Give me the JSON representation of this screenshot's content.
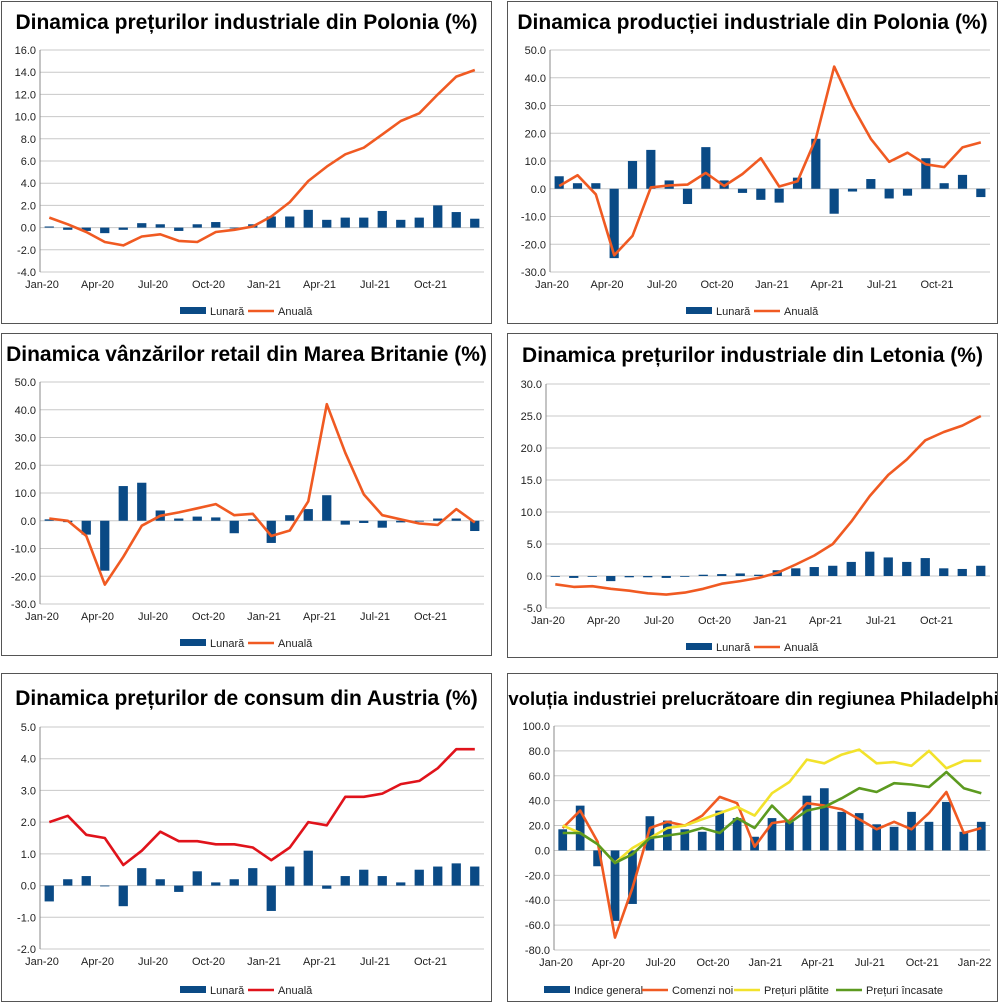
{
  "colors": {
    "bar": "#0a4a85",
    "orange": "#f05a22",
    "red": "#e0131b",
    "yellow": "#f2e22b",
    "green": "#5c9a20"
  },
  "chart_data": [
    {
      "type": "bar+line",
      "title": "Dinamica prețurilor industriale din Polonia (%)",
      "ylim": [
        -4,
        16
      ],
      "ystep": 2,
      "ydec": 1,
      "x_ticks": [
        "Jan-20",
        "Apr-20",
        "Jul-20",
        "Oct-20",
        "Jan-21",
        "Apr-21",
        "Jul-21",
        "Oct-21"
      ],
      "months": [
        "Jan-20",
        "Feb-20",
        "Mar-20",
        "Apr-20",
        "May-20",
        "Jun-20",
        "Jul-20",
        "Aug-20",
        "Sep-20",
        "Oct-20",
        "Nov-20",
        "Dec-20",
        "Jan-21",
        "Feb-21",
        "Mar-21",
        "Apr-21",
        "May-21",
        "Jun-21",
        "Jul-21",
        "Aug-21",
        "Sep-21",
        "Oct-21",
        "Nov-21",
        "Dec-21"
      ],
      "series": [
        {
          "name": "Lunară",
          "kind": "bar",
          "color": "bar",
          "values": [
            0.1,
            -0.2,
            -0.3,
            -0.5,
            -0.2,
            0.4,
            0.3,
            -0.3,
            0.3,
            0.5,
            0.0,
            0.3,
            1.0,
            1.0,
            1.6,
            0.7,
            0.9,
            0.9,
            1.5,
            0.7,
            0.9,
            2.0,
            1.4,
            0.8
          ]
        },
        {
          "name": "Anuală",
          "kind": "line",
          "color": "orange",
          "values": [
            0.9,
            0.3,
            -0.4,
            -1.3,
            -1.6,
            -0.8,
            -0.6,
            -1.2,
            -1.3,
            -0.4,
            -0.2,
            0.1,
            1.0,
            2.3,
            4.2,
            5.5,
            6.6,
            7.2,
            8.4,
            9.6,
            10.3,
            12.0,
            13.6,
            14.2
          ]
        }
      ],
      "legend": [
        "Lunară",
        "Anuală"
      ]
    },
    {
      "type": "bar+line",
      "title": "Dinamica producției industriale din Polonia (%)",
      "ylim": [
        -30,
        50
      ],
      "ystep": 10,
      "ydec": 1,
      "x_ticks": [
        "Jan-20",
        "Apr-20",
        "Jul-20",
        "Oct-20",
        "Jan-21",
        "Apr-21",
        "Jul-21",
        "Oct-21"
      ],
      "months": [
        "Jan-20",
        "Feb-20",
        "Mar-20",
        "Apr-20",
        "May-20",
        "Jun-20",
        "Jul-20",
        "Aug-20",
        "Sep-20",
        "Oct-20",
        "Nov-20",
        "Dec-20",
        "Jan-21",
        "Feb-21",
        "Mar-21",
        "Apr-21",
        "May-21",
        "Jun-21",
        "Jul-21",
        "Aug-21",
        "Sep-21",
        "Oct-21",
        "Nov-21",
        "Dec-21"
      ],
      "series": [
        {
          "name": "Lunară",
          "kind": "bar",
          "color": "bar",
          "values": [
            4.5,
            2.0,
            2.0,
            -25.0,
            10.0,
            14.0,
            3.0,
            -5.5,
            15.0,
            3.0,
            -1.5,
            -4.0,
            -5.0,
            4.0,
            18.0,
            -9.0,
            -1.0,
            3.5,
            -3.5,
            -2.5,
            11.0,
            2.0,
            5.0,
            -3.0
          ]
        },
        {
          "name": "Anuală",
          "kind": "line",
          "color": "orange",
          "values": [
            1.0,
            4.9,
            -2.0,
            -24.0,
            -17.0,
            0.5,
            1.2,
            1.5,
            5.7,
            1.0,
            5.3,
            11.0,
            0.8,
            2.7,
            18.0,
            44.0,
            29.8,
            18.0,
            9.7,
            13.0,
            8.8,
            7.8,
            14.9,
            16.7
          ]
        }
      ],
      "legend": [
        "Lunară",
        "Anuală"
      ]
    },
    {
      "type": "bar+line",
      "title": "Dinamica vânzărilor retail din Marea Britanie (%)",
      "ylim": [
        -30,
        50
      ],
      "ystep": 10,
      "ydec": 1,
      "x_ticks": [
        "Jan-20",
        "Apr-20",
        "Jul-20",
        "Oct-20",
        "Jan-21",
        "Apr-21",
        "Jul-21",
        "Oct-21"
      ],
      "months": [
        "Jan-20",
        "Feb-20",
        "Mar-20",
        "Apr-20",
        "May-20",
        "Jun-20",
        "Jul-20",
        "Aug-20",
        "Sep-20",
        "Oct-20",
        "Nov-20",
        "Dec-20",
        "Jan-21",
        "Feb-21",
        "Mar-21",
        "Apr-21",
        "May-21",
        "Jun-21",
        "Jul-21",
        "Aug-21",
        "Sep-21",
        "Oct-21",
        "Nov-21",
        "Dec-21"
      ],
      "series": [
        {
          "name": "Lunară",
          "kind": "bar",
          "color": "bar",
          "values": [
            0.5,
            -0.5,
            -5.0,
            -18.0,
            12.5,
            13.7,
            3.7,
            0.8,
            1.5,
            1.2,
            -4.5,
            0.5,
            -8.0,
            2.0,
            4.2,
            9.2,
            -1.4,
            -0.8,
            -2.5,
            -0.6,
            -0.3,
            0.8,
            0.8,
            -3.7
          ]
        },
        {
          "name": "Anuală",
          "kind": "line",
          "color": "orange",
          "values": [
            0.8,
            0.0,
            -5.5,
            -23.0,
            -13.0,
            -1.8,
            1.8,
            3.0,
            4.5,
            6.0,
            2.0,
            2.5,
            -5.5,
            -3.5,
            7.0,
            42.0,
            24.5,
            9.5,
            2.0,
            0.5,
            -1.0,
            -1.5,
            4.2,
            -0.6
          ]
        }
      ],
      "legend": [
        "Lunară",
        "Anuală"
      ]
    },
    {
      "type": "bar+line",
      "title": "Dinamica prețurilor industriale din Letonia (%)",
      "ylim": [
        -5,
        30
      ],
      "ystep": 5,
      "ydec": 1,
      "x_ticks": [
        "Jan-20",
        "Apr-20",
        "Jul-20",
        "Oct-20",
        "Jan-21",
        "Apr-21",
        "Jul-21",
        "Oct-21"
      ],
      "months": [
        "Jan-20",
        "Feb-20",
        "Mar-20",
        "Apr-20",
        "May-20",
        "Jun-20",
        "Jul-20",
        "Aug-20",
        "Sep-20",
        "Oct-20",
        "Nov-20",
        "Dec-20",
        "Jan-21",
        "Feb-21",
        "Mar-21",
        "Apr-21",
        "May-21",
        "Jun-21",
        "Jul-21",
        "Aug-21",
        "Sep-21",
        "Oct-21",
        "Nov-21",
        "Dec-21"
      ],
      "series": [
        {
          "name": "Lunară",
          "kind": "bar",
          "color": "bar",
          "values": [
            0.0,
            -0.3,
            -0.1,
            -0.8,
            -0.2,
            -0.2,
            -0.3,
            0.0,
            0.2,
            0.3,
            0.4,
            0.2,
            0.9,
            1.2,
            1.4,
            1.6,
            2.2,
            3.8,
            2.9,
            2.2,
            2.8,
            1.2,
            1.1,
            1.6
          ]
        },
        {
          "name": "Anuală",
          "kind": "line",
          "color": "orange",
          "values": [
            -1.3,
            -1.7,
            -1.6,
            -2.0,
            -2.3,
            -2.7,
            -2.9,
            -2.6,
            -2.0,
            -1.2,
            -0.8,
            -0.3,
            0.5,
            1.8,
            3.2,
            5.0,
            8.5,
            12.5,
            15.8,
            18.2,
            21.2,
            22.5,
            23.5,
            25.0
          ]
        }
      ],
      "legend": [
        "Lunară",
        "Anuală"
      ]
    },
    {
      "type": "bar+line",
      "title": "Dinamica prețurilor de consum din Austria (%)",
      "ylim": [
        -2,
        5
      ],
      "ystep": 1,
      "ydec": 1,
      "x_ticks": [
        "Jan-20",
        "Apr-20",
        "Jul-20",
        "Oct-20",
        "Jan-21",
        "Apr-21",
        "Jul-21",
        "Oct-21"
      ],
      "months": [
        "Jan-20",
        "Feb-20",
        "Mar-20",
        "Apr-20",
        "May-20",
        "Jun-20",
        "Jul-20",
        "Aug-20",
        "Sep-20",
        "Oct-20",
        "Nov-20",
        "Dec-20",
        "Jan-21",
        "Feb-21",
        "Mar-21",
        "Apr-21",
        "May-21",
        "Jun-21",
        "Jul-21",
        "Aug-21",
        "Sep-21",
        "Oct-21",
        "Nov-21",
        "Dec-21"
      ],
      "series": [
        {
          "name": "Lunară",
          "kind": "bar",
          "color": "bar",
          "values": [
            -0.5,
            0.2,
            0.3,
            0.0,
            -0.65,
            0.55,
            0.2,
            -0.2,
            0.45,
            0.1,
            0.2,
            0.55,
            -0.8,
            0.6,
            1.1,
            -0.1,
            0.3,
            0.5,
            0.3,
            0.1,
            0.5,
            0.6,
            0.7,
            0.6
          ]
        },
        {
          "name": "Anuală",
          "kind": "line",
          "color": "red",
          "values": [
            2.0,
            2.2,
            1.6,
            1.5,
            0.65,
            1.1,
            1.7,
            1.4,
            1.4,
            1.3,
            1.3,
            1.2,
            0.8,
            1.2,
            2.0,
            1.9,
            2.8,
            2.8,
            2.9,
            3.2,
            3.3,
            3.7,
            4.3,
            4.3
          ]
        }
      ],
      "legend": [
        "Lunară",
        "Anuală"
      ]
    },
    {
      "type": "bar+line",
      "title": "Evoluția industriei prelucrătoare din regiunea Philadelphia",
      "ylim": [
        -80,
        100
      ],
      "ystep": 20,
      "ydec": 1,
      "x_ticks": [
        "Jan-20",
        "Apr-20",
        "Jul-20",
        "Oct-20",
        "Jan-21",
        "Apr-21",
        "Jul-21",
        "Oct-21",
        "Jan-22"
      ],
      "months": [
        "Jan-20",
        "Feb-20",
        "Mar-20",
        "Apr-20",
        "May-20",
        "Jun-20",
        "Jul-20",
        "Aug-20",
        "Sep-20",
        "Oct-20",
        "Nov-20",
        "Dec-20",
        "Jan-21",
        "Feb-21",
        "Mar-21",
        "Apr-21",
        "May-21",
        "Jun-21",
        "Jul-21",
        "Aug-21",
        "Sep-21",
        "Oct-21",
        "Nov-21",
        "Dec-21",
        "Jan-22"
      ],
      "series": [
        {
          "name": "Indice general",
          "kind": "bar",
          "color": "bar",
          "values": [
            17,
            36,
            -12.7,
            -56.6,
            -43,
            27.5,
            24,
            17,
            15,
            32,
            26,
            11,
            26,
            23,
            44,
            50,
            31,
            30,
            21,
            19,
            31,
            23,
            39,
            15,
            23
          ]
        },
        {
          "name": "Comenzi noi",
          "kind": "line",
          "color": "orange",
          "values": [
            18,
            32,
            7,
            -70,
            -30,
            18,
            23,
            20,
            28,
            43,
            38,
            3,
            22,
            24,
            38,
            36,
            33,
            25,
            17,
            23,
            17,
            30,
            47,
            14,
            18
          ]
        },
        {
          "name": "Prețuri plătite",
          "kind": "line",
          "color": "yellow",
          "values": [
            20,
            14,
            5,
            -10,
            2,
            10,
            18,
            20,
            25,
            30,
            35,
            28,
            46,
            55,
            73,
            70,
            77,
            81,
            70,
            71,
            68,
            80,
            66,
            72,
            72
          ]
        },
        {
          "name": "Prețuri încasate",
          "kind": "line",
          "color": "green",
          "values": [
            14,
            14,
            5,
            -10,
            -3,
            10,
            12,
            14,
            18,
            14,
            26,
            18,
            36,
            22,
            32,
            35,
            42,
            50,
            47,
            54,
            53,
            51,
            63,
            50,
            46
          ]
        }
      ],
      "legend": [
        "Indice general",
        "Comenzi noi",
        "Prețuri plătite",
        "Prețuri încasate"
      ]
    }
  ]
}
